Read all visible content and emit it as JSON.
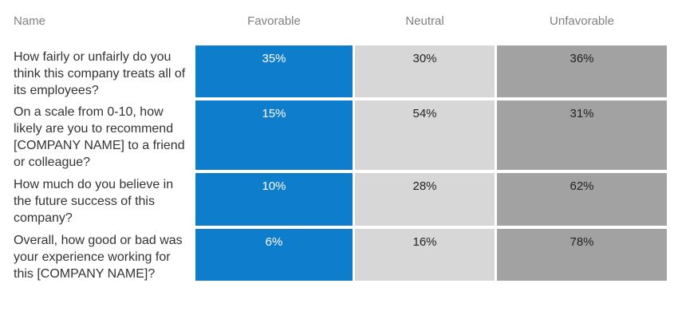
{
  "header": {
    "name_label": "Name",
    "columns": [
      "Favorable",
      "Neutral",
      "Unfavorable"
    ]
  },
  "colors": {
    "favorable": "#0e7dcb",
    "neutral": "#d7d7d7",
    "unfavorable": "#a2a2a2",
    "header_text": "#808080",
    "question_text": "#333333"
  },
  "rows": [
    {
      "question": "How fairly or unfairly do you think this company treats all of its employees?",
      "favorable": "35%",
      "neutral": "30%",
      "unfavorable": "36%"
    },
    {
      "question": "On a scale from 0-10, how likely are you to recommend [COMPANY NAME] to a friend or colleague?",
      "favorable": "15%",
      "neutral": "54%",
      "unfavorable": "31%"
    },
    {
      "question": "How much do you believe in the future success of this company?",
      "favorable": "10%",
      "neutral": "28%",
      "unfavorable": "62%"
    },
    {
      "question": "Overall, how good or bad was your experience working for this [COMPANY NAME]?",
      "favorable": "6%",
      "neutral": "16%",
      "unfavorable": "78%"
    }
  ],
  "chart_data": {
    "type": "table",
    "title": "",
    "categories": [
      "How fairly or unfairly do you think this company treats all of its employees?",
      "On a scale from 0-10, how likely are you to recommend [COMPANY NAME] to a friend or colleague?",
      "How much do you believe in the future success of this company?",
      "Overall, how good or bad was your experience working for this [COMPANY NAME]?"
    ],
    "series": [
      {
        "name": "Favorable",
        "values": [
          35,
          15,
          10,
          6
        ]
      },
      {
        "name": "Neutral",
        "values": [
          30,
          54,
          28,
          16
        ]
      },
      {
        "name": "Unfavorable",
        "values": [
          36,
          31,
          62,
          78
        ]
      }
    ],
    "value_unit": "%",
    "layout": "matrix of questions (rows) vs sentiment buckets (columns), values shown as cell labels"
  }
}
